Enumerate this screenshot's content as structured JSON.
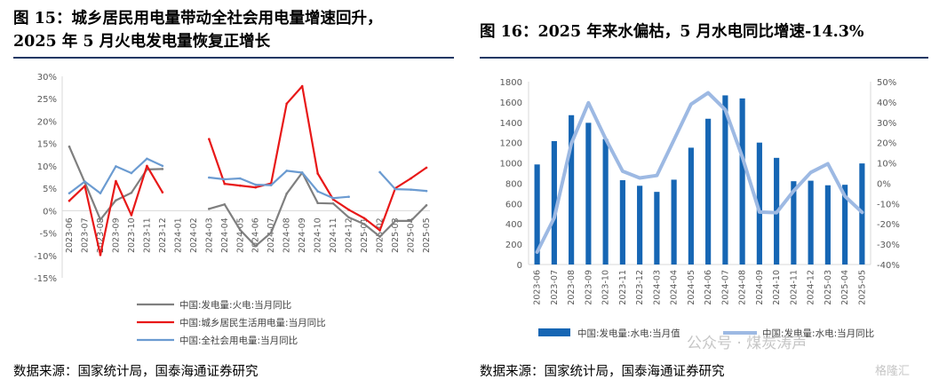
{
  "figure15": {
    "title": "图 15：城乡居民用电量带动全社会用电量增速回升，\n2025 年 5 月火电发电量恢复正增长",
    "source": "数据来源：国家统计局，国泰海通证券研究"
  },
  "figure16": {
    "title": "图 16：2025 年来水偏枯，5 月水电同比增速-14.3%",
    "source": "数据来源：国家统计局，国泰海通证券研究"
  },
  "watermark": {
    "text": "公众号 · 煤炭涛声",
    "logo": "格隆汇"
  },
  "chart_data": [
    {
      "type": "line",
      "categories": [
        "2023-06",
        "2023-07",
        "2023-08",
        "2023-09",
        "2023-10",
        "2023-11",
        "2023-12",
        "2024-01",
        "2024-02",
        "2024-03",
        "2024-04",
        "2024-05",
        "2024-06",
        "2024-07",
        "2024-08",
        "2024-09",
        "2024-10",
        "2024-11",
        "2024-12",
        "2025-01",
        "2025-02",
        "2025-03",
        "2025-04",
        "2025-05"
      ],
      "ylim": [
        -15,
        30
      ],
      "yticks": [
        "-15%",
        "-10%",
        "-5%",
        "0%",
        "5%",
        "10%",
        "15%",
        "20%",
        "25%",
        "30%"
      ],
      "grid": false,
      "legend_position": "bottom-left",
      "series": [
        {
          "name": "中国:发电量:火电:当月同比",
          "color": "#7f7f7f",
          "values": [
            14.3,
            6.3,
            -2.0,
            2.3,
            4.0,
            9.2,
            9.3,
            null,
            null,
            0.4,
            1.4,
            -4.3,
            -7.9,
            -4.9,
            3.8,
            8.5,
            1.7,
            1.6,
            -1.5,
            -3.0,
            -5.8,
            -2.3,
            -2.3,
            1.2
          ]
        },
        {
          "name": "中国:城乡居民生活用电量:当月同比",
          "color": "#e81818",
          "values": [
            2.2,
            5.5,
            -9.9,
            6.6,
            -1.0,
            10.0,
            4.1,
            null,
            null,
            16.0,
            6.0,
            5.6,
            5.2,
            6.1,
            23.9,
            27.8,
            8.3,
            2.5,
            0.2,
            -1.7,
            -4.4,
            5.0,
            7.2,
            9.6
          ]
        },
        {
          "name": "中国:全社会用电量:当月同比",
          "color": "#6b9bd1",
          "values": [
            3.9,
            6.5,
            3.9,
            9.9,
            8.4,
            11.6,
            10.0,
            null,
            null,
            7.4,
            7.0,
            7.2,
            5.8,
            5.7,
            8.9,
            8.5,
            4.3,
            2.8,
            3.1,
            null,
            8.6,
            4.8,
            4.7,
            4.4
          ]
        }
      ]
    },
    {
      "type": "bar",
      "categories": [
        "2023-06",
        "2023-07",
        "2023-08",
        "2023-09",
        "2023-10",
        "2023-11",
        "2023-12",
        "2024-03",
        "2024-04",
        "2024-05",
        "2024-06",
        "2024-07",
        "2024-08",
        "2024-09",
        "2024-10",
        "2024-11",
        "2024-12",
        "2025-03",
        "2025-04",
        "2025-05"
      ],
      "ylim": [
        0,
        1800
      ],
      "yticks": [
        "0",
        "200",
        "400",
        "600",
        "800",
        "1000",
        "1200",
        "1400",
        "1600",
        "1800"
      ],
      "y2lim": [
        -40,
        50
      ],
      "y2ticks": [
        "-40%",
        "-30%",
        "-20%",
        "-10%",
        "0%",
        "10%",
        "20%",
        "30%",
        "40%",
        "50%"
      ],
      "grid": false,
      "legend_position": "bottom",
      "series": [
        {
          "name": "中国:发电量:水电:当月值",
          "color": "#1666b4",
          "axis": "left",
          "values": [
            985,
            1215,
            1470,
            1395,
            1235,
            830,
            775,
            715,
            835,
            1150,
            1435,
            1665,
            1635,
            1200,
            1050,
            820,
            825,
            780,
            785,
            995
          ]
        },
        {
          "name": "中国:发电量:水电:当月同比",
          "color": "#9db9e3",
          "axis": "right",
          "values": [
            -33.9,
            -17.0,
            19.5,
            39.6,
            22.0,
            5.9,
            2.6,
            3.8,
            21.3,
            38.9,
            44.5,
            36.2,
            12.9,
            -14.2,
            -14.5,
            -3.8,
            5.3,
            9.6,
            -6.4,
            -14.3
          ]
        }
      ]
    }
  ]
}
